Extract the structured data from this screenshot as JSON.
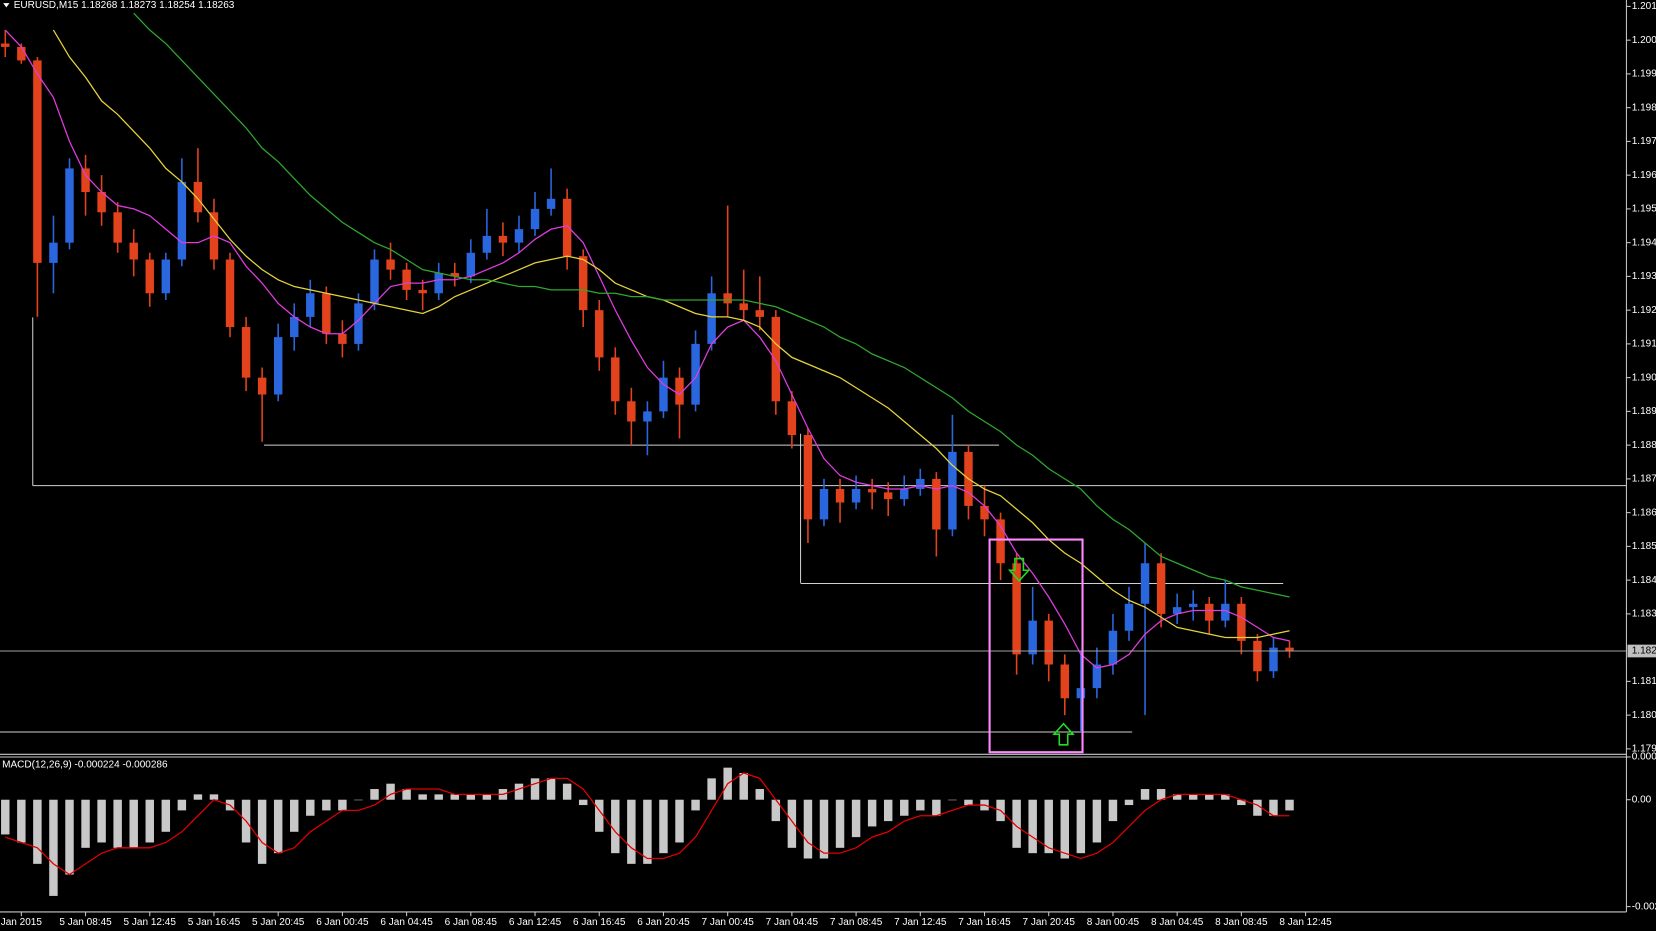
{
  "chart_data": [
    {
      "type": "candlestick",
      "title": "EURUSD,M15  1.18268 1.18273 1.18254 1.18263",
      "up_color": "#2a66dd",
      "down_color": "#e2421c",
      "categories": [
        null,
        "Jan 2015",
        null,
        null,
        null,
        "5 Jan 08:45",
        null,
        null,
        null,
        "5 Jan 12:45",
        null,
        null,
        null,
        "5 Jan 16:45",
        null,
        null,
        null,
        "5 Jan 20:45",
        null,
        null,
        null,
        "6 Jan 00:45",
        null,
        null,
        null,
        "6 Jan 04:45",
        null,
        null,
        null,
        "6 Jan 08:45",
        null,
        null,
        null,
        "6 Jan 12:45",
        null,
        null,
        null,
        "6 Jan 16:45",
        null,
        null,
        null,
        "6 Jan 20:45",
        null,
        null,
        null,
        "7 Jan 00:45",
        null,
        null,
        null,
        "7 Jan 04:45",
        null,
        null,
        null,
        "7 Jan 08:45",
        null,
        null,
        null,
        "7 Jan 12:45",
        null,
        null,
        null,
        "7 Jan 16:45",
        null,
        null,
        null,
        "7 Jan 20:45",
        null,
        null,
        null,
        "8 Jan 00:45",
        null,
        null,
        null,
        "8 Jan 04:45",
        null,
        null,
        null,
        "8 Jan 08:45",
        null,
        null,
        null,
        "8 Jan 12:45"
      ],
      "open": [
        1.1999,
        1.1998,
        1.1994,
        1.1934,
        1.194,
        1.1962,
        1.1955,
        1.1949,
        1.194,
        1.1935,
        1.1925,
        1.1935,
        1.1958,
        1.1949,
        1.1935,
        1.1915,
        1.19,
        1.1895,
        1.1912,
        1.1918,
        1.1925,
        1.1913,
        1.191,
        1.1922,
        1.1935,
        1.1932,
        1.1926,
        1.1925,
        1.1931,
        1.193,
        1.1937,
        1.1942,
        1.194,
        1.1944,
        1.195,
        1.1953,
        1.1936,
        1.192,
        1.1906,
        1.1893,
        1.1887,
        1.189,
        1.19,
        1.1892,
        1.191,
        1.1925,
        1.1922,
        1.192,
        1.1918,
        1.1893,
        1.1883,
        1.1858,
        1.1867,
        1.1863,
        1.1867,
        1.1866,
        1.1864,
        1.1867,
        1.187,
        1.1855,
        1.1878,
        1.1862,
        1.1858,
        1.1845,
        1.1818,
        1.1828,
        1.1815,
        1.1805,
        1.1808,
        1.1815,
        1.1825,
        1.1833,
        1.1845,
        1.183,
        1.1832,
        1.1833,
        1.1828,
        1.1833,
        1.1822,
        1.1813,
        1.182,
        null
      ],
      "high": [
        1.2003,
        1.1999,
        1.1995,
        1.1948,
        1.1965,
        1.1966,
        1.196,
        1.1952,
        1.1944,
        1.1937,
        1.1937,
        1.1965,
        1.1968,
        1.1953,
        1.1937,
        1.1918,
        1.1903,
        1.1916,
        1.1922,
        1.1929,
        1.1927,
        1.1917,
        1.1925,
        1.1938,
        1.194,
        1.1934,
        1.1929,
        1.1934,
        1.1934,
        1.1941,
        1.195,
        1.1946,
        1.1948,
        1.1955,
        1.1962,
        1.1956,
        1.1938,
        1.1923,
        1.1909,
        1.1897,
        1.1893,
        1.1905,
        1.1903,
        1.1914,
        1.193,
        1.1951,
        1.1932,
        1.193,
        1.192,
        1.1896,
        1.1885,
        1.187,
        1.187,
        1.1871,
        1.187,
        1.1869,
        1.1871,
        1.1873,
        1.1872,
        1.1889,
        1.188,
        1.1868,
        1.186,
        1.1848,
        1.1838,
        1.183,
        1.1818,
        1.1819,
        1.182,
        1.183,
        1.1838,
        1.1851,
        1.1848,
        1.1836,
        1.1837,
        1.1835,
        1.184,
        1.1835,
        1.1824,
        1.1823,
        1.1822,
        null
      ],
      "low": [
        1.1995,
        1.1993,
        1.1918,
        1.1925,
        1.1938,
        1.1948,
        1.1945,
        1.1937,
        1.193,
        1.1921,
        1.1923,
        1.1933,
        1.1946,
        1.1932,
        1.1912,
        1.1896,
        1.1881,
        1.1893,
        1.1908,
        1.1915,
        1.191,
        1.1906,
        1.1908,
        1.192,
        1.1929,
        1.1923,
        1.192,
        1.1923,
        1.1927,
        1.1928,
        1.1935,
        1.1936,
        1.1937,
        1.1942,
        1.1948,
        1.1932,
        1.1915,
        1.1902,
        1.1889,
        1.188,
        1.1877,
        1.1888,
        1.1882,
        1.189,
        1.1908,
        1.1918,
        1.1917,
        1.1914,
        1.1889,
        1.1879,
        1.1851,
        1.1856,
        1.1857,
        1.1861,
        1.1861,
        1.1859,
        1.1862,
        1.1865,
        1.1847,
        1.1853,
        1.1858,
        1.1853,
        1.184,
        1.1812,
        1.1815,
        1.181,
        1.18,
        1.1795,
        1.1805,
        1.1812,
        1.1822,
        1.18,
        1.1826,
        1.1827,
        1.1828,
        1.1824,
        1.1826,
        1.1818,
        1.181,
        1.1811,
        1.1817,
        null
      ],
      "close": [
        1.1998,
        1.1994,
        1.1934,
        1.194,
        1.1962,
        1.1955,
        1.1949,
        1.194,
        1.1935,
        1.1925,
        1.1935,
        1.1958,
        1.1949,
        1.1935,
        1.1915,
        1.19,
        1.1895,
        1.1912,
        1.1918,
        1.1925,
        1.1913,
        1.191,
        1.1922,
        1.1935,
        1.1932,
        1.1926,
        1.1925,
        1.1931,
        1.193,
        1.1937,
        1.1942,
        1.194,
        1.1944,
        1.195,
        1.1953,
        1.1936,
        1.192,
        1.1906,
        1.1893,
        1.1887,
        1.189,
        1.19,
        1.1892,
        1.191,
        1.1925,
        1.1922,
        1.192,
        1.1918,
        1.1893,
        1.1883,
        1.1858,
        1.1867,
        1.1863,
        1.1867,
        1.1866,
        1.1864,
        1.1867,
        1.187,
        1.1855,
        1.1878,
        1.1862,
        1.1858,
        1.1845,
        1.1818,
        1.1828,
        1.1815,
        1.1805,
        1.1808,
        1.1815,
        1.1825,
        1.1833,
        1.1845,
        1.183,
        1.1832,
        1.1833,
        1.1828,
        1.1833,
        1.1822,
        1.1813,
        1.182,
        1.1819,
        null
      ],
      "series": [
        {
          "color": "#e03ce0",
          "values": [
            1.2003,
            1.1998,
            1.199,
            1.1983,
            1.197,
            1.196,
            1.1955,
            1.1951,
            1.195,
            1.1948,
            1.1944,
            1.194,
            1.194,
            1.1942,
            1.194,
            1.1933,
            1.1928,
            1.1922,
            1.1918,
            1.1915,
            1.1913,
            1.1913,
            1.1917,
            1.1922,
            1.1927,
            1.1928,
            1.1928,
            1.1929,
            1.1929,
            1.193,
            1.1932,
            1.1934,
            1.1937,
            1.1941,
            1.1944,
            1.1945,
            1.194,
            1.193,
            1.192,
            1.1911,
            1.1903,
            1.1898,
            1.1895,
            1.19,
            1.191,
            1.1915,
            1.1917,
            1.1912,
            1.1905,
            1.1895,
            1.1885,
            1.1876,
            1.1871,
            1.1869,
            1.1868,
            1.1867,
            1.1867,
            1.1868,
            1.1867,
            1.1868,
            1.1866,
            1.1862,
            1.1856,
            1.1848,
            1.1842,
            1.1835,
            1.1827,
            1.1818,
            1.1814,
            1.1815,
            1.1818,
            1.1824,
            1.1828,
            1.183,
            1.1831,
            1.1831,
            1.1831,
            1.1829,
            1.1826,
            1.1823,
            1.1822,
            null
          ]
        },
        {
          "color": "#e6d23c",
          "values": [
            null,
            null,
            null,
            1.2003,
            1.1995,
            1.1989,
            1.1982,
            1.1978,
            1.1973,
            1.1968,
            1.1962,
            1.1958,
            1.1953,
            1.1947,
            1.1941,
            1.1936,
            1.1932,
            1.1929,
            1.1927,
            1.1926,
            1.1925,
            1.1924,
            1.1923,
            1.1922,
            1.1921,
            1.192,
            1.1919,
            1.1921,
            1.1924,
            1.1926,
            1.1928,
            1.193,
            1.1932,
            1.1934,
            1.1935,
            1.1936,
            1.1935,
            1.1932,
            1.1928,
            1.1926,
            1.1924,
            1.1923,
            1.1921,
            1.1919,
            1.1918,
            1.1918,
            1.1917,
            1.1915,
            1.191,
            1.1906,
            1.1904,
            1.1902,
            1.19,
            1.1897,
            1.1894,
            1.1891,
            1.1887,
            1.1883,
            1.1879,
            1.1874,
            1.187,
            1.1867,
            1.1865,
            1.1861,
            1.1857,
            1.1852,
            1.1848,
            1.1845,
            1.1841,
            1.1837,
            1.1834,
            1.1832,
            1.1829,
            1.1826,
            1.1825,
            1.1824,
            1.1823,
            1.1823,
            1.1823,
            1.1824,
            1.1825,
            null
          ]
        },
        {
          "color": "#2ea82e",
          "values": [
            null,
            null,
            null,
            null,
            null,
            null,
            null,
            null,
            1.2008,
            1.2003,
            1.1999,
            1.1994,
            1.1989,
            1.1984,
            1.1979,
            1.1974,
            1.1968,
            1.1964,
            1.1959,
            1.1954,
            1.195,
            1.1946,
            1.1943,
            1.194,
            1.1938,
            1.1935,
            1.1932,
            1.1931,
            1.193,
            1.1929,
            1.1929,
            1.1928,
            1.1927,
            1.1927,
            1.1926,
            1.1926,
            1.1926,
            1.1925,
            1.1925,
            1.1924,
            1.1924,
            1.1923,
            1.1923,
            1.1923,
            1.1923,
            1.1923,
            1.1923,
            1.1922,
            1.1921,
            1.1919,
            1.1917,
            1.1915,
            1.1912,
            1.191,
            1.1907,
            1.1905,
            1.1903,
            1.19,
            1.1897,
            1.1894,
            1.189,
            1.1887,
            1.1884,
            1.188,
            1.1877,
            1.1873,
            1.187,
            1.1867,
            1.1862,
            1.1858,
            1.1855,
            1.1851,
            1.1847,
            1.1845,
            1.1843,
            1.1841,
            1.184,
            1.1838,
            1.1837,
            1.1836,
            1.1835,
            null
          ]
        }
      ],
      "levels": [
        1.188,
        1.1868,
        1.1839,
        1.1795
      ],
      "current_price": {
        "value": 1.1819,
        "label": "1.182"
      },
      "ylim": [
        1.17887,
        1.20119
      ],
      "yticks": [
        1.179,
        {
          "value": 1.18,
          "label": "1.180"
        },
        1.181,
        1.183,
        1.184,
        1.185,
        1.186,
        1.187,
        1.188,
        1.189,
        {
          "value": 1.19,
          "label": "1.190"
        },
        1.191,
        1.192,
        1.193,
        1.194,
        1.195,
        1.196,
        1.197,
        1.198,
        1.199,
        {
          "value": 1.2,
          "label": "1.200"
        },
        1.201
      ]
    },
    {
      "type": "macd",
      "title": "MACD(12,26,9) -0.000224 -0.000286",
      "color": "#c8c8c8",
      "values": [
        -0.00065,
        -0.0008,
        -0.0012,
        -0.0018,
        -0.0014,
        -0.0009,
        -0.0008,
        -0.0009,
        -0.0009,
        -0.0008,
        -0.0006,
        -0.0002,
        0.0001,
        0.0001,
        -0.0002,
        -0.0008,
        -0.0012,
        -0.001,
        -0.0006,
        -0.0003,
        -0.0002,
        -0.0002,
        0,
        0.0002,
        0.0003,
        0.0002,
        0.0001,
        0.0001,
        0.0001,
        0.0001,
        0.0001,
        0.0002,
        0.0003,
        0.0004,
        0.0004,
        0.0003,
        -0.0001,
        -0.0006,
        -0.001,
        -0.0012,
        -0.0012,
        -0.001,
        -0.0008,
        -0.0002,
        0.0004,
        0.0006,
        0.0005,
        0.0002,
        -0.0004,
        -0.0009,
        -0.0011,
        -0.0011,
        -0.0009,
        -0.0007,
        -0.0005,
        -0.0004,
        -0.0003,
        -0.0002,
        -0.0003,
        0,
        -0.0001,
        -0.0002,
        -0.0004,
        -0.0009,
        -0.001,
        -0.001,
        -0.0011,
        -0.001,
        -0.0008,
        -0.0004,
        -0.0001,
        0.0002,
        0.0002,
        0.0001,
        0.0001,
        0.0001,
        0.0001,
        -0.0001,
        -0.0003,
        -0.0003,
        -0.0002,
        null
      ],
      "series": [
        {
          "color": "#e00000",
          "values": [
            -0.0007,
            -0.0008,
            -0.0009,
            -0.0012,
            -0.0014,
            -0.0012,
            -0.001,
            -0.0009,
            -0.0009,
            -0.0009,
            -0.0008,
            -0.0006,
            -0.0003,
            0,
            -0.0001,
            -0.0004,
            -0.0008,
            -0.001,
            -0.0009,
            -0.0006,
            -0.0004,
            -0.0002,
            -0.0002,
            -0.0001,
            0.0001,
            0.0002,
            0.0002,
            0.0002,
            0.0001,
            0.0001,
            0.0001,
            0.0001,
            0.0002,
            0.0003,
            0.0004,
            0.0004,
            0.0002,
            -0.0002,
            -0.0006,
            -0.0009,
            -0.0011,
            -0.0011,
            -0.001,
            -0.0007,
            -0.0002,
            0.0003,
            0.0005,
            0.0004,
            0,
            -0.0004,
            -0.0008,
            -0.001,
            -0.001,
            -0.0009,
            -0.0007,
            -0.0006,
            -0.0004,
            -0.0003,
            -0.0003,
            -0.0002,
            -0.0001,
            -0.0001,
            -0.0002,
            -0.0005,
            -0.0007,
            -0.0009,
            -0.001,
            -0.0011,
            -0.001,
            -0.0008,
            -0.0005,
            -0.0002,
            0,
            0.0001,
            0.0001,
            0.0001,
            0.0001,
            0,
            -0.0001,
            -0.0003,
            -0.0003,
            null
          ]
        }
      ],
      "ylim": [
        -0.0021,
        0.00079
      ],
      "yticks": [
        0.0008,
        {
          "value": 0,
          "label": "0.00"
        },
        -0.002
      ]
    }
  ]
}
